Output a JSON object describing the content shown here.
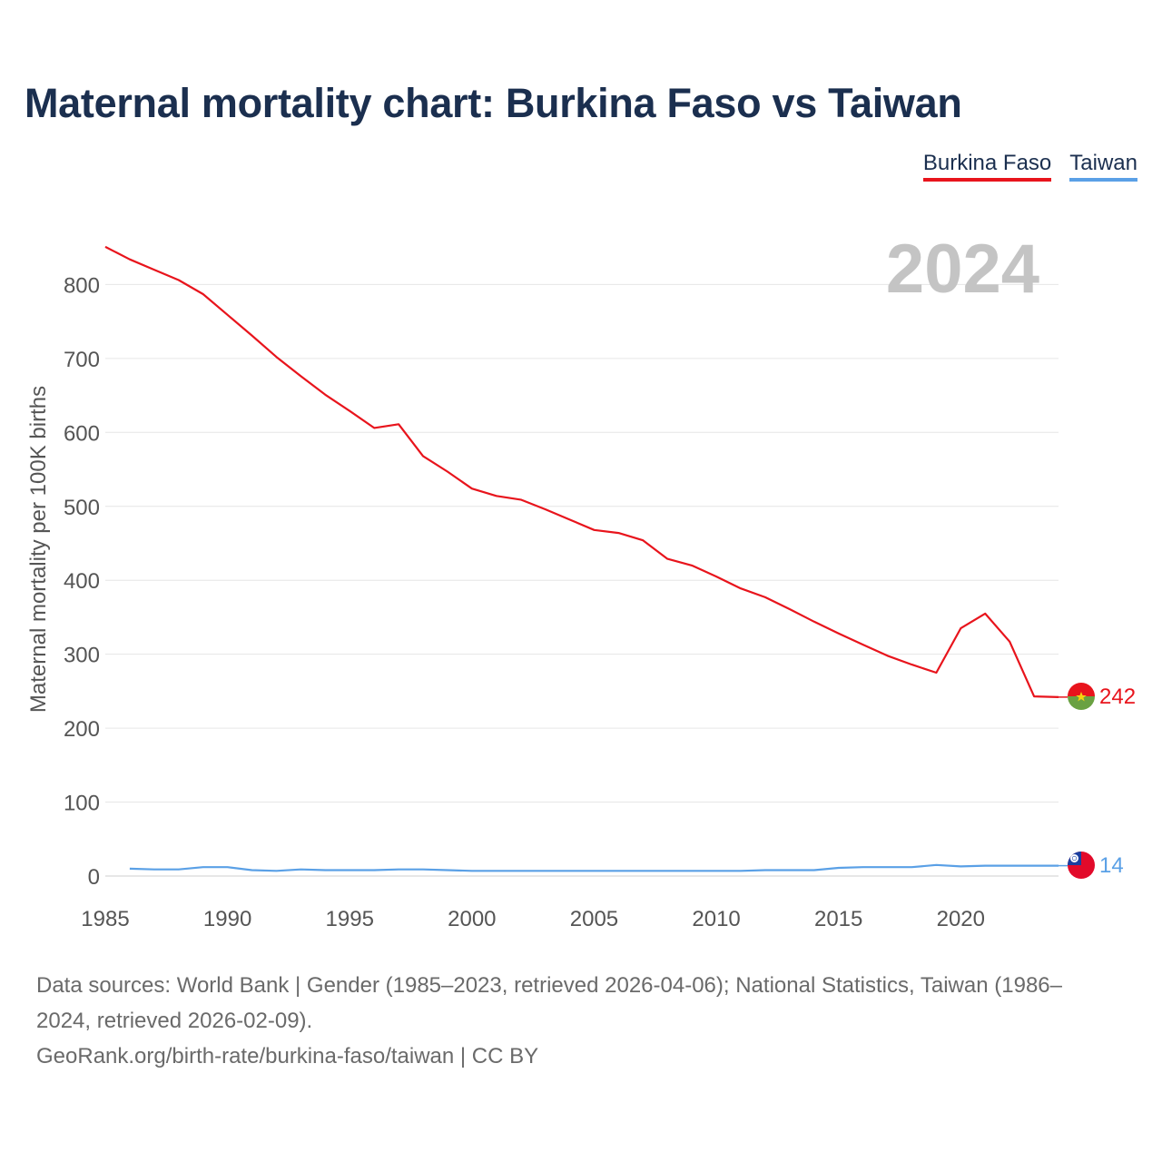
{
  "title": "Maternal mortality chart: Burkina Faso vs Taiwan",
  "legend": [
    {
      "label": "Burkina Faso",
      "color": "#e8141c"
    },
    {
      "label": "Taiwan",
      "color": "#5aa0e6"
    }
  ],
  "year_watermark": "2024",
  "footer": {
    "sources": "Data sources: World Bank | Gender (1985–2023, retrieved 2026-04-06); National Statistics, Taiwan (1986–2024, retrieved 2026-02-09).",
    "credit": "GeoRank.org/birth-rate/burkina-faso/taiwan | CC BY"
  },
  "chart_data": {
    "type": "line",
    "title": "Maternal mortality chart: Burkina Faso vs Taiwan",
    "ylabel": "Maternal mortality per 100K births",
    "xlabel": "",
    "xlim": [
      1985,
      2024
    ],
    "ylim": [
      0,
      850
    ],
    "x_ticks": [
      1985,
      1990,
      1995,
      2000,
      2005,
      2010,
      2015,
      2020
    ],
    "y_ticks": [
      0,
      100,
      200,
      300,
      400,
      500,
      600,
      700,
      800
    ],
    "grid": true,
    "series": [
      {
        "name": "Burkina Faso",
        "color": "#e8141c",
        "end_label": "242",
        "x": [
          1985,
          1986,
          1987,
          1988,
          1989,
          1990,
          1991,
          1992,
          1993,
          1994,
          1995,
          1996,
          1997,
          1998,
          1999,
          2000,
          2001,
          2002,
          2003,
          2004,
          2005,
          2006,
          2007,
          2008,
          2009,
          2010,
          2011,
          2012,
          2013,
          2014,
          2015,
          2016,
          2017,
          2018,
          2019,
          2020,
          2021,
          2022,
          2023,
          2024
        ],
        "values": [
          851,
          834,
          820,
          806,
          787,
          759,
          731,
          702,
          676,
          651,
          629,
          606,
          611,
          568,
          547,
          524,
          514,
          509,
          496,
          482,
          468,
          464,
          454,
          429,
          420,
          405,
          389,
          377,
          361,
          344,
          328,
          313,
          298,
          286,
          275,
          335,
          355,
          317,
          243,
          242
        ]
      },
      {
        "name": "Taiwan",
        "color": "#5aa0e6",
        "end_label": "14",
        "x": [
          1986,
          1987,
          1988,
          1989,
          1990,
          1991,
          1992,
          1993,
          1994,
          1995,
          1996,
          1997,
          1998,
          1999,
          2000,
          2001,
          2002,
          2003,
          2004,
          2005,
          2006,
          2007,
          2008,
          2009,
          2010,
          2011,
          2012,
          2013,
          2014,
          2015,
          2016,
          2017,
          2018,
          2019,
          2020,
          2021,
          2022,
          2023,
          2024
        ],
        "values": [
          10,
          9,
          9,
          12,
          12,
          8,
          7,
          9,
          8,
          8,
          8,
          9,
          9,
          8,
          7,
          7,
          7,
          7,
          7,
          7,
          7,
          7,
          7,
          7,
          7,
          7,
          8,
          8,
          8,
          11,
          12,
          12,
          12,
          15,
          13,
          14,
          14,
          14,
          14
        ]
      }
    ]
  }
}
